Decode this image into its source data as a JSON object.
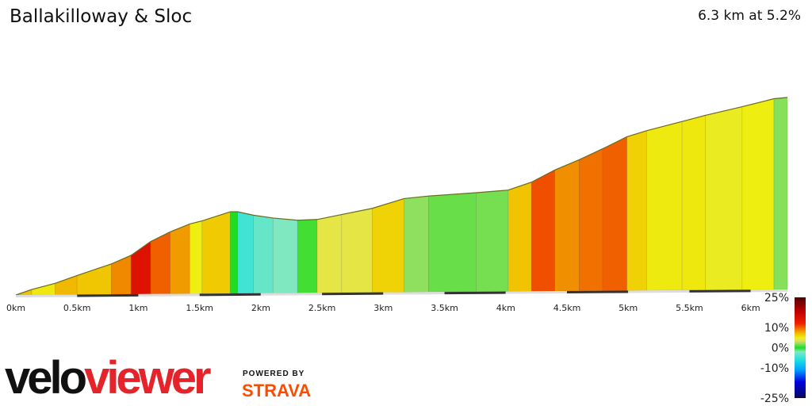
{
  "header": {
    "title": "Ballakilloway & Sloc",
    "summary": "6.3 km at 5.2%"
  },
  "branding": {
    "logo_part1": "velo",
    "logo_part2": "viewer",
    "powered_by": "POWERED BY",
    "strava": "STRAVA",
    "logo_color": "#e4232b",
    "strava_color": "#fc4c02"
  },
  "chart_data": {
    "type": "area",
    "title": "",
    "xlabel": "",
    "ylabel": "",
    "x_unit": "km",
    "xlim": [
      0,
      6.3
    ],
    "x_ticks": [
      "0km",
      "0.5km",
      "1km",
      "1.5km",
      "2km",
      "2.5km",
      "3km",
      "3.5km",
      "4km",
      "4.5km",
      "5km",
      "5.5km",
      "6km"
    ],
    "x_tick_values": [
      0,
      0.5,
      1,
      1.5,
      2,
      2.5,
      3,
      3.5,
      4,
      4.5,
      5,
      5.5,
      6
    ],
    "profile": {
      "distance_km": [
        0,
        0.13,
        0.32,
        0.5,
        0.78,
        0.94,
        1.1,
        1.26,
        1.42,
        1.52,
        1.75,
        1.81,
        1.94,
        2.1,
        2.3,
        2.46,
        2.66,
        2.91,
        3.17,
        3.37,
        3.76,
        4.02,
        4.21,
        4.4,
        4.6,
        4.79,
        4.99,
        5.15,
        5.44,
        5.63,
        5.93,
        6.19,
        6.3
      ],
      "elevation_gain_m": [
        0,
        9,
        19,
        32,
        51,
        65,
        88,
        104,
        117,
        122,
        137,
        137,
        131,
        126,
        122,
        123,
        131,
        141,
        157,
        161,
        166,
        170,
        183,
        203,
        220,
        238,
        258,
        268,
        283,
        293,
        307,
        320,
        322
      ]
    },
    "color_by": "gradient",
    "legend": {
      "placement": "bottom-right",
      "labels": [
        "25%",
        "10%",
        "0%",
        "-10%",
        "-25%"
      ],
      "values": [
        25,
        10,
        0,
        -10,
        -25
      ],
      "colorscale": [
        {
          "v": -25,
          "c": "#0a0a5a"
        },
        {
          "v": -17,
          "c": "#0000e0"
        },
        {
          "v": -11,
          "c": "#00a0ff"
        },
        {
          "v": -6,
          "c": "#20e0e0"
        },
        {
          "v": -2,
          "c": "#80e8c0"
        },
        {
          "v": 0,
          "c": "#20dd20"
        },
        {
          "v": 2,
          "c": "#90e060"
        },
        {
          "v": 3.5,
          "c": "#e0e060"
        },
        {
          "v": 5,
          "c": "#eeee10"
        },
        {
          "v": 7,
          "c": "#f0c000"
        },
        {
          "v": 9,
          "c": "#f08000"
        },
        {
          "v": 12,
          "c": "#f02000"
        },
        {
          "v": 18,
          "c": "#c00000"
        },
        {
          "v": 25,
          "c": "#500000"
        }
      ]
    }
  }
}
